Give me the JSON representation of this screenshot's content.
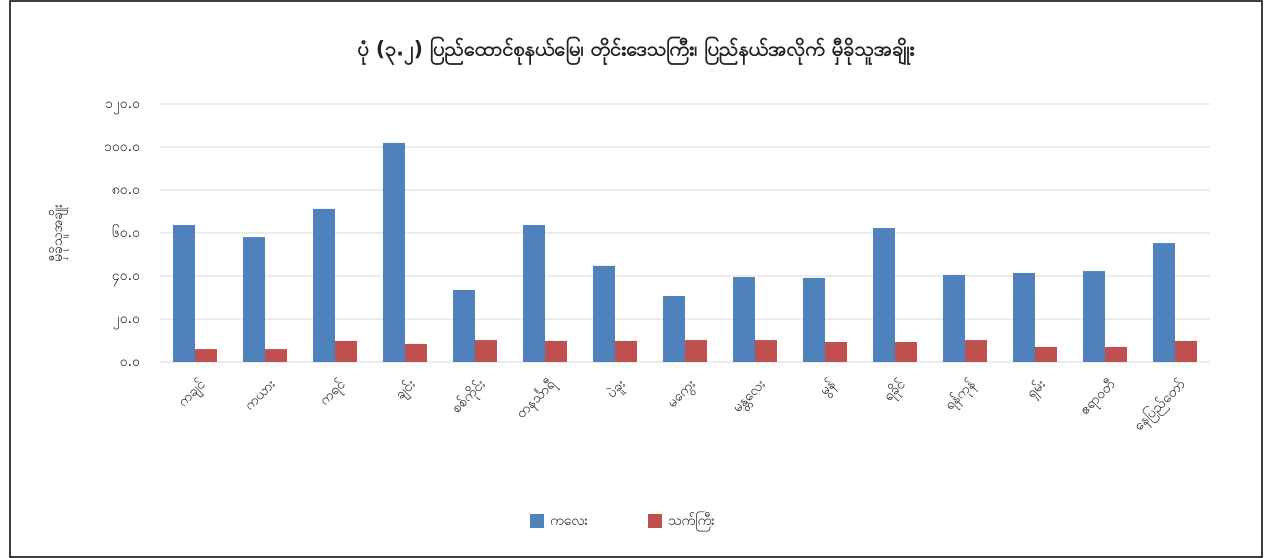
{
  "chart_data": {
    "type": "bar",
    "title": "ပုံ (၃.၂) ပြည်ထောင်စုနယ်မြေ၊ တိုင်းဒေသကြီး၊ ပြည်နယ်အလိုက် မှီခိုသူအချိုး",
    "y_label": "မှီခိုသူအချိုး",
    "categories": [
      "ကချင်",
      "ကယား",
      "ကရင်",
      "ချင်း",
      "စစ်ကိုင်း",
      "တနင်္သာရီ",
      "ပဲခူး",
      "မကွေး",
      "မန္တလေး",
      "မွန်",
      "ရခိုင်",
      "ရန်ကုန်",
      "ရှမ်း",
      "ဧရာဝတီ",
      "နေပြည်တော်"
    ],
    "series": [
      {
        "name": "ကလေး",
        "color": "#4f81bd",
        "values": [
          63.7,
          58.1,
          71.2,
          101.9,
          33.5,
          63.7,
          44.7,
          30.7,
          39.5,
          39.1,
          62.3,
          40.5,
          41.4,
          42.3,
          55.3
        ]
      },
      {
        "name": "သက်ကြီး",
        "color": "#c0504d",
        "values": [
          6.0,
          6.0,
          9.8,
          8.4,
          10.2,
          9.8,
          9.8,
          10.2,
          10.2,
          9.3,
          9.3,
          10.2,
          7.0,
          7.0,
          9.8
        ]
      }
    ],
    "ylim": [
      0,
      120
    ],
    "yticks": [
      {
        "value": 0,
        "label": "၀.၀"
      },
      {
        "value": 20,
        "label": "၂၀.၀"
      },
      {
        "value": 40,
        "label": "၄၀.၀"
      },
      {
        "value": 60,
        "label": "၆၀.၀"
      },
      {
        "value": 80,
        "label": "၈၀.၀"
      },
      {
        "value": 100,
        "label": "၁၀၀.၀"
      },
      {
        "value": 120,
        "label": "၁၂၀.၀"
      }
    ],
    "grid": true,
    "legend": "bottom"
  }
}
